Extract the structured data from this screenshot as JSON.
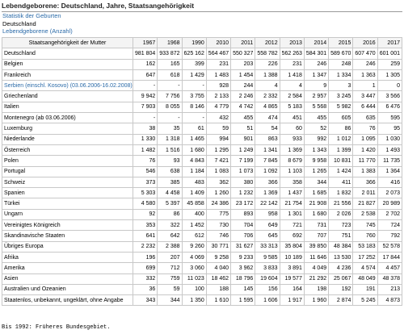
{
  "header": {
    "title": "Lebendgeborene: Deutschland, Jahre, Staatsangehörigkeit",
    "lines": [
      "Statistik der Geburten",
      "Deutschland",
      "Lebendgeborene (Anzahl)"
    ]
  },
  "table": {
    "columns": [
      "Staatsangehörigkeit der Mutter",
      "1967",
      "1968",
      "1990",
      "2010",
      "2011",
      "2012",
      "2013",
      "2014",
      "2015",
      "2016",
      "2017"
    ],
    "rows": [
      [
        "Deutschland",
        "981 804",
        "933 872",
        "625 162",
        "564 467",
        "550 327",
        "558 782",
        "562 263",
        "584 301",
        "589 670",
        "607 470",
        "601 001"
      ],
      [
        "Belgien",
        "162",
        "165",
        "399",
        "231",
        "203",
        "226",
        "231",
        "246",
        "248",
        "246",
        "259"
      ],
      [
        "Frankreich",
        "647",
        "618",
        "1 429",
        "1 483",
        "1 454",
        "1 388",
        "1 418",
        "1 347",
        "1 334",
        "1 363",
        "1 305"
      ],
      [
        "Serbien (einschl. Kosovo) (03.06.2006-16.02.2008)",
        "-",
        "-",
        "-",
        "928",
        "244",
        "4",
        "4",
        "9",
        "3",
        "1",
        "0"
      ],
      [
        "Griechenland",
        "9 942",
        "7 756",
        "3 755",
        "2 133",
        "2 246",
        "2 332",
        "2 584",
        "2 957",
        "3 245",
        "3 447",
        "3 566"
      ],
      [
        "Italien",
        "7 903",
        "8 055",
        "8 146",
        "4 779",
        "4 742",
        "4 865",
        "5 183",
        "5 568",
        "5 982",
        "6 444",
        "6 476"
      ],
      [
        "Montenegro (ab 03.06.2006)",
        "-",
        "-",
        "-",
        "432",
        "455",
        "474",
        "451",
        "455",
        "605",
        "635",
        "595"
      ],
      [
        "Luxemburg",
        "38",
        "35",
        "61",
        "59",
        "51",
        "54",
        "60",
        "52",
        "86",
        "76",
        "95"
      ],
      [
        "Niederlande",
        "1 330",
        "1 318",
        "1 465",
        "994",
        "901",
        "863",
        "933",
        "992",
        "1 012",
        "1 095",
        "1 030"
      ],
      [
        "Österreich",
        "1 482",
        "1 516",
        "1 680",
        "1 295",
        "1 249",
        "1 341",
        "1 369",
        "1 343",
        "1 399",
        "1 420",
        "1 493"
      ],
      [
        "Polen",
        "76",
        "93",
        "4 843",
        "7 421",
        "7 199",
        "7 845",
        "8 679",
        "9 958",
        "10 831",
        "11 770",
        "11 735"
      ],
      [
        "Portugal",
        "546",
        "638",
        "1 184",
        "1 083",
        "1 073",
        "1 092",
        "1 103",
        "1 265",
        "1 424",
        "1 383",
        "1 364"
      ],
      [
        "Schweiz",
        "373",
        "385",
        "483",
        "362",
        "380",
        "366",
        "358",
        "344",
        "411",
        "366",
        "416"
      ],
      [
        "Spanien",
        "5 303",
        "4 458",
        "1 409",
        "1 260",
        "1 232",
        "1 369",
        "1 437",
        "1 685",
        "1 832",
        "2 011",
        "2 073"
      ],
      [
        "Türkei",
        "4 580",
        "5 397",
        "45 858",
        "24 386",
        "23 172",
        "22 142",
        "21 754",
        "21 908",
        "21 556",
        "21 827",
        "20 989"
      ],
      [
        "Ungarn",
        "92",
        "86",
        "400",
        "775",
        "893",
        "958",
        "1 301",
        "1 680",
        "2 026",
        "2 538",
        "2 702"
      ],
      [
        "Vereinigtes Königreich",
        "353",
        "322",
        "1 452",
        "730",
        "704",
        "649",
        "721",
        "731",
        "723",
        "745",
        "724"
      ],
      [
        "Skandinavische Staaten",
        "641",
        "642",
        "612",
        "746",
        "706",
        "645",
        "692",
        "707",
        "751",
        "760",
        "792"
      ],
      [
        "Übriges Europa",
        "2 232",
        "2 388",
        "9 260",
        "30 771",
        "31 627",
        "33 313",
        "35 804",
        "39 850",
        "48 384",
        "53 183",
        "52 578"
      ],
      [
        "Afrika",
        "196",
        "207",
        "4 069",
        "9 258",
        "9 233",
        "9 585",
        "10 189",
        "11 646",
        "13 530",
        "17 252",
        "17 844"
      ],
      [
        "Amerika",
        "699",
        "712",
        "3 060",
        "4 040",
        "3 962",
        "3 833",
        "3 891",
        "4 049",
        "4 236",
        "4 574",
        "4 457"
      ],
      [
        "Asien",
        "332",
        "759",
        "11 023",
        "18 462",
        "18 796",
        "19 604",
        "19 577",
        "21 292",
        "25 067",
        "48 049",
        "48 378"
      ],
      [
        "Australien und Ozeanien",
        "36",
        "59",
        "100",
        "188",
        "145",
        "156",
        "164",
        "198",
        "192",
        "191",
        "213"
      ],
      [
        "Staatenlos, unbekannt, ungeklärt, ohne Angabe",
        "343",
        "344",
        "1 350",
        "1 610",
        "1 595",
        "1 606",
        "1 917",
        "1 960",
        "2 874",
        "5 245",
        "4 873"
      ]
    ]
  },
  "footer": "Bis 1992: Früheres Bundesgebiet."
}
